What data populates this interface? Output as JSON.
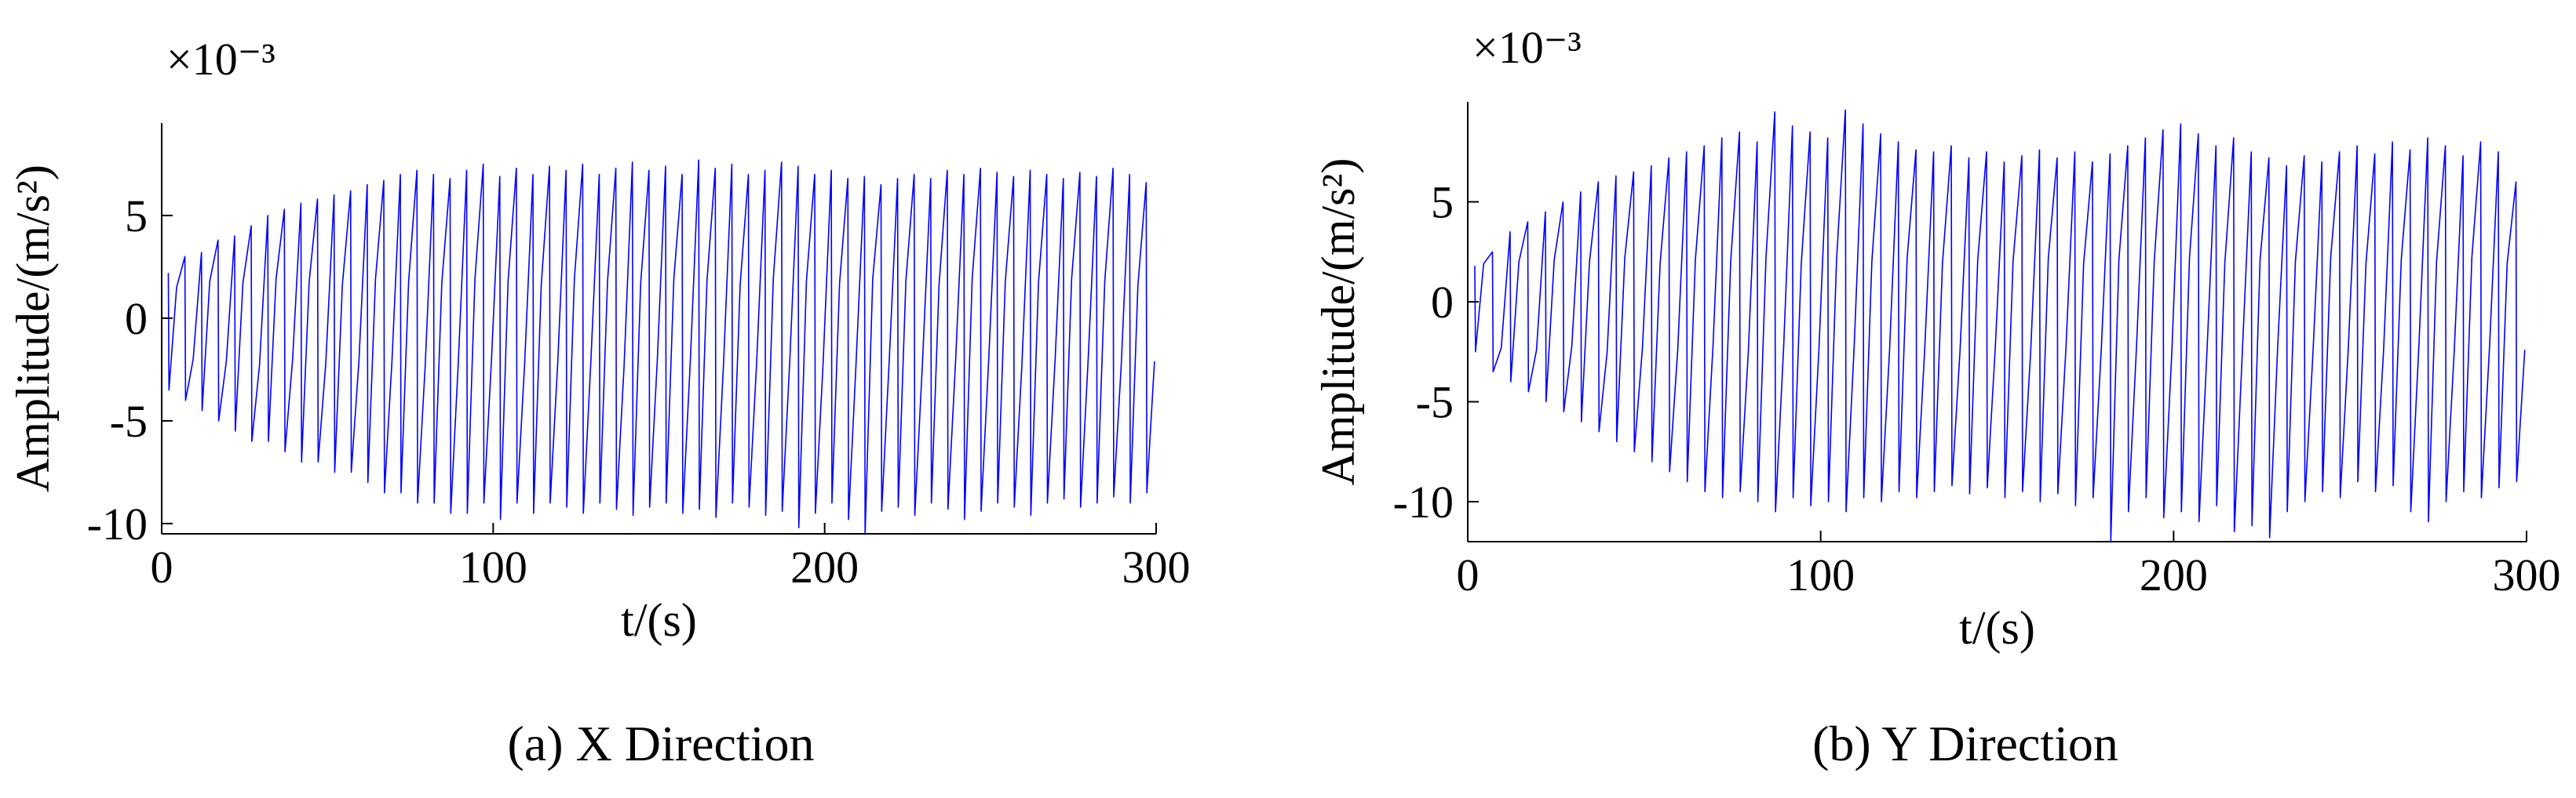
{
  "chart_data": [
    {
      "type": "line",
      "caption": "(a) X Direction",
      "x_label": "t/(s)",
      "y_label": "Amplitude/(m/s²)",
      "multiplier": "×10⁻³",
      "xlim": [
        0,
        300
      ],
      "xticks": [
        0,
        100,
        200,
        300
      ],
      "ylim": [
        -10.5,
        9.5
      ],
      "yticks": [
        -10,
        -5,
        0,
        5
      ],
      "x": [
        2,
        2.2,
        4.5,
        7,
        7.2,
        9.5,
        12,
        12.2,
        14.5,
        17,
        17.2,
        19.5,
        22,
        22.2,
        24.5,
        27,
        27.2,
        29.5,
        32,
        32.2,
        34.5,
        37,
        37.2,
        39.5,
        42,
        42.2,
        44.5,
        47,
        47.2,
        49.5,
        52,
        52.2,
        54.5,
        57,
        57.2,
        59.5,
        62,
        62.2,
        64.5,
        67,
        67.2,
        69.5,
        72,
        72.2,
        74.5,
        77,
        77.2,
        79.5,
        82,
        82.2,
        84.5,
        87,
        87.2,
        89.5,
        92,
        92.2,
        94.5,
        97,
        97.2,
        99.5,
        102,
        102.2,
        104.5,
        107,
        107.2,
        109.5,
        112,
        112.2,
        114.5,
        117,
        117.2,
        119.5,
        122,
        122.2,
        124.5,
        127,
        127.2,
        129.5,
        132,
        132.2,
        134.5,
        137,
        137.2,
        139.5,
        142,
        142.2,
        144.5,
        147,
        147.2,
        149.5,
        152,
        152.2,
        154.5,
        157,
        157.2,
        159.5,
        162,
        162.2,
        164.5,
        167,
        167.2,
        169.5,
        172,
        172.2,
        174.5,
        177,
        177.2,
        179.5,
        182,
        182.2,
        184.5,
        187,
        187.2,
        189.5,
        192,
        192.2,
        194.5,
        197,
        197.2,
        199.5,
        202,
        202.2,
        204.5,
        207,
        207.2,
        209.5,
        212,
        212.2,
        214.5,
        217,
        217.2,
        219.5,
        222,
        222.2,
        224.5,
        227,
        227.2,
        229.5,
        232,
        232.2,
        234.5,
        237,
        237.2,
        239.5,
        242,
        242.2,
        244.5,
        247,
        247.2,
        249.5,
        252,
        252.2,
        254.5,
        257,
        257.2,
        259.5,
        262,
        262.2,
        264.5,
        267,
        267.2,
        269.5,
        272,
        272.2,
        274.5,
        277,
        277.2,
        279.5,
        282,
        282.2,
        284.5,
        287,
        287.2,
        289.5,
        292,
        292.2,
        294.5,
        297,
        297.2,
        299.5
      ],
      "series": [
        {
          "color": "#0000ff",
          "values": [
            2.2,
            -3.5,
            1.5,
            3,
            -4,
            -2,
            3.2,
            -4.5,
            1.8,
            3.8,
            -5,
            -2.1,
            4,
            -5.5,
            1.7,
            4.5,
            -6,
            -2.3,
            5,
            -6,
            1.9,
            5.3,
            -6.5,
            -2,
            5.6,
            -7,
            1.8,
            5.8,
            -7,
            -2.2,
            6,
            -7.5,
            1.6,
            6.2,
            -7.5,
            -2.1,
            6.5,
            -8,
            1.9,
            6.7,
            -8.5,
            -2,
            7,
            -8.5,
            1.8,
            7.2,
            -9,
            -2.3,
            7,
            -9,
            1.7,
            6.8,
            -9.5,
            -2.1,
            7.2,
            -9.5,
            1.9,
            7.5,
            -9,
            -2,
            6.9,
            -9.8,
            1.8,
            7.3,
            -9,
            -2.2,
            7,
            -9.5,
            1.6,
            7.4,
            -9,
            -2.1,
            7.2,
            -9.2,
            1.9,
            7.5,
            -9.5,
            -2,
            7,
            -9,
            1.8,
            7.3,
            -9.3,
            -2.3,
            7.6,
            -9.6,
            1.7,
            7.2,
            -9.2,
            -2.1,
            7.4,
            -9,
            1.9,
            7,
            -9.5,
            -2,
            7.7,
            -9.3,
            1.8,
            7.3,
            -9.7,
            -2.2,
            7.5,
            -9,
            1.6,
            7,
            -9.2,
            -2.1,
            7.2,
            -9.6,
            1.9,
            7.6,
            -9.4,
            -2,
            7.4,
            -10.2,
            1.8,
            7,
            -9.5,
            -2.3,
            7.2,
            -9,
            1.7,
            6.8,
            -9.8,
            -2.1,
            6.9,
            -10.5,
            1.9,
            6.5,
            -9.4,
            -2,
            6.8,
            -9.2,
            1.8,
            7,
            -9.6,
            -2.2,
            6.8,
            -9,
            1.6,
            7.2,
            -9.3,
            -2.1,
            7,
            -9.8,
            1.9,
            7.3,
            -9.4,
            -2,
            7.1,
            -9,
            1.8,
            6.9,
            -9.2,
            -2.3,
            7.2,
            -9.6,
            1.7,
            7,
            -9,
            -2.1,
            6.8,
            -8.8,
            1.9,
            7.1,
            -9.2,
            -2,
            6.9,
            -9,
            1.8,
            7.3,
            -8.7,
            -2.2,
            7,
            -9,
            1.6,
            6.6,
            -8.5,
            -2.1
          ]
        }
      ]
    },
    {
      "type": "line",
      "caption": "(b) Y Direction",
      "x_label": "t/(s)",
      "y_label": "Amplitude/(m/s²)",
      "multiplier": "×10⁻³",
      "xlim": [
        0,
        300
      ],
      "xticks": [
        0,
        100,
        200,
        300
      ],
      "ylim": [
        -12,
        10
      ],
      "yticks": [
        -10,
        -5,
        0,
        5
      ],
      "x": [
        2,
        2.2,
        4.5,
        7,
        7.2,
        9.5,
        12,
        12.2,
        14.5,
        17,
        17.2,
        19.5,
        22,
        22.2,
        24.5,
        27,
        27.2,
        29.5,
        32,
        32.2,
        34.5,
        37,
        37.2,
        39.5,
        42,
        42.2,
        44.5,
        47,
        47.2,
        49.5,
        52,
        52.2,
        54.5,
        57,
        57.2,
        59.5,
        62,
        62.2,
        64.5,
        67,
        67.2,
        69.5,
        72,
        72.2,
        74.5,
        77,
        77.2,
        79.5,
        82,
        82.2,
        84.5,
        87,
        87.2,
        89.5,
        92,
        92.2,
        94.5,
        97,
        97.2,
        99.5,
        102,
        102.2,
        104.5,
        107,
        107.2,
        109.5,
        112,
        112.2,
        114.5,
        117,
        117.2,
        119.5,
        122,
        122.2,
        124.5,
        127,
        127.2,
        129.5,
        132,
        132.2,
        134.5,
        137,
        137.2,
        139.5,
        142,
        142.2,
        144.5,
        147,
        147.2,
        149.5,
        152,
        152.2,
        154.5,
        157,
        157.2,
        159.5,
        162,
        162.2,
        164.5,
        167,
        167.2,
        169.5,
        172,
        172.2,
        174.5,
        177,
        177.2,
        179.5,
        182,
        182.2,
        184.5,
        187,
        187.2,
        189.5,
        192,
        192.2,
        194.5,
        197,
        197.2,
        199.5,
        202,
        202.2,
        204.5,
        207,
        207.2,
        209.5,
        212,
        212.2,
        214.5,
        217,
        217.2,
        219.5,
        222,
        222.2,
        224.5,
        227,
        227.2,
        229.5,
        232,
        232.2,
        234.5,
        237,
        237.2,
        239.5,
        242,
        242.2,
        244.5,
        247,
        247.2,
        249.5,
        252,
        252.2,
        254.5,
        257,
        257.2,
        259.5,
        262,
        262.2,
        264.5,
        267,
        267.2,
        269.5,
        272,
        272.2,
        274.5,
        277,
        277.2,
        279.5,
        282,
        282.2,
        284.5,
        287,
        287.2,
        289.5,
        292,
        292.2,
        294.5,
        297,
        297.2,
        299.5
      ],
      "series": [
        {
          "color": "#0000ff",
          "values": [
            1.8,
            -2.5,
            1.9,
            2.5,
            -3.5,
            -2.3,
            3.5,
            -4,
            2,
            4,
            -4.5,
            -2.4,
            4.5,
            -5,
            2.1,
            5,
            -5.5,
            -2.2,
            5.5,
            -6,
            2,
            6,
            -6.5,
            -2.5,
            6.3,
            -7,
            2.2,
            6.5,
            -7.5,
            -2.3,
            6.8,
            -8,
            1.9,
            7.2,
            -8.5,
            -2.4,
            7.5,
            -9,
            2.1,
            7.8,
            -9.5,
            -2.2,
            8.2,
            -9.8,
            2,
            8.5,
            -9.5,
            -2.5,
            8,
            -10,
            2.2,
            9.5,
            -10.5,
            -2.3,
            8.8,
            -9.8,
            1.9,
            8.5,
            -10.2,
            -2.4,
            8.2,
            -10,
            2.1,
            9.6,
            -10.5,
            -2.2,
            8.9,
            -9.8,
            2,
            8.4,
            -10,
            -2.5,
            8,
            -9.5,
            2.2,
            7.6,
            -9.8,
            -2.3,
            7.5,
            -9.5,
            1.9,
            7.8,
            -9.2,
            -2.4,
            7.2,
            -9.6,
            2.1,
            7.5,
            -9.3,
            -2.2,
            7,
            -9.8,
            2,
            7.3,
            -9.5,
            -2.5,
            7.6,
            -10,
            2.2,
            7.2,
            -9.6,
            -2.3,
            7.5,
            -10.2,
            1.9,
            7,
            -9.8,
            -2.4,
            7.4,
            -12,
            2.1,
            7.8,
            -10.5,
            -2.2,
            8.2,
            -9.8,
            2,
            8.6,
            -10.8,
            -2.5,
            8.9,
            -10.5,
            2.2,
            8.4,
            -11,
            -2.3,
            7.8,
            -10.2,
            1.9,
            8.2,
            -11.5,
            -2.4,
            7.5,
            -11.2,
            2.1,
            7.2,
            -11.8,
            -2.2,
            6.8,
            -10.5,
            2,
            7.3,
            -10,
            -2.5,
            7,
            -9.5,
            2.2,
            7.5,
            -9.8,
            -2.3,
            7.8,
            -9,
            1.9,
            7.4,
            -9.5,
            -2.4,
            8,
            -9.2,
            2.1,
            7.6,
            -10.5,
            -2.2,
            8.2,
            -11,
            2,
            7.8,
            -10,
            -2.5,
            7.3,
            -9.5,
            2.2,
            8,
            -9.8,
            -2.3,
            7.5,
            -9.3,
            1.9,
            6,
            -9,
            -2.4
          ]
        }
      ]
    }
  ]
}
